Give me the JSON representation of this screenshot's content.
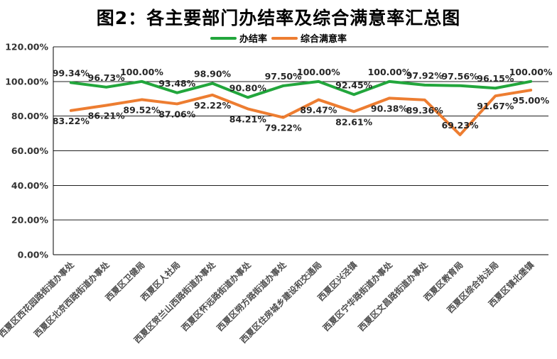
{
  "page": {
    "title": "图2：各主要部门办结率及综合满意率汇总图"
  },
  "chart_data": {
    "type": "line",
    "title": "图2：各主要部门办结率及综合满意率汇总图",
    "categories": [
      "西夏区西花园路街道办事处",
      "西夏区北京西路街道办事处",
      "西夏区卫健局",
      "西夏区人社局",
      "西夏区贺兰山西路街道办事处",
      "西夏区怀远路街道办事处",
      "西夏区朔方路街道办事处",
      "西夏区住房城乡建设和交通局",
      "西夏区兴泾镇",
      "西夏区宁华路街道办事处",
      "西夏区文昌路街道办事处",
      "西夏区教育局",
      "西夏区综合执法局",
      "西夏区镇北堡镇"
    ],
    "series": [
      {
        "name": "办结率",
        "color": "#22A63C",
        "values": [
          99.34,
          96.73,
          100.0,
          93.48,
          98.9,
          90.8,
          97.5,
          100.0,
          92.45,
          100.0,
          97.92,
          97.56,
          96.15,
          100.0
        ],
        "data_label_position": "above",
        "data_label_overrides": {}
      },
      {
        "name": "综合满意率",
        "color": "#ED7D31",
        "values": [
          83.22,
          86.21,
          89.52,
          87.06,
          92.22,
          84.21,
          79.22,
          89.47,
          82.61,
          90.38,
          89.36,
          69.23,
          91.67,
          95.0
        ],
        "data_label_position": "below",
        "data_label_overrides": {
          "11": "above"
        }
      }
    ],
    "ylim": [
      0,
      120
    ],
    "ytick_step": 20,
    "ytick_labels": [
      "0.00%",
      "20.00%",
      "40.00%",
      "60.00%",
      "80.00%",
      "100.00%",
      "120.00%"
    ],
    "value_format": "0.00%",
    "grid": true,
    "legend_position": "top-center",
    "colors": {
      "grid_line": "#1f1f1f",
      "axis_line": "#000000",
      "tick_label": "#333333",
      "data_label": "#262626",
      "category_label": "#4d4d4d"
    }
  }
}
